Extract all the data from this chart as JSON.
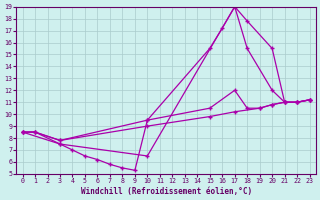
{
  "xlabel": "Windchill (Refroidissement éolien,°C)",
  "bg_color": "#cff0ee",
  "line_color": "#aa00aa",
  "xlim": [
    -0.5,
    23.5
  ],
  "ylim": [
    5,
    19
  ],
  "xticks": [
    0,
    1,
    2,
    3,
    4,
    5,
    6,
    7,
    8,
    9,
    10,
    11,
    12,
    13,
    14,
    15,
    16,
    17,
    18,
    19,
    20,
    21,
    22,
    23
  ],
  "yticks": [
    5,
    6,
    7,
    8,
    9,
    10,
    11,
    12,
    13,
    14,
    15,
    16,
    17,
    18,
    19
  ],
  "lines": [
    {
      "x": [
        0,
        1,
        3,
        10,
        15,
        16,
        17,
        18,
        20,
        21,
        22,
        23
      ],
      "y": [
        8.5,
        8.5,
        7.8,
        9.5,
        15.5,
        17.2,
        19.0,
        17.8,
        15.5,
        11.0,
        11.0,
        11.2
      ]
    },
    {
      "x": [
        0,
        3,
        10,
        17,
        18,
        20,
        21,
        22,
        23
      ],
      "y": [
        8.5,
        7.5,
        6.5,
        19.0,
        15.5,
        12.0,
        11.0,
        11.0,
        11.2
      ]
    },
    {
      "x": [
        0,
        1,
        3,
        4,
        5,
        6,
        7,
        8,
        9,
        10,
        15,
        17,
        18,
        19,
        20,
        21,
        22,
        23
      ],
      "y": [
        8.5,
        8.5,
        7.5,
        7.0,
        6.5,
        6.2,
        5.8,
        5.5,
        5.3,
        9.5,
        10.5,
        12.0,
        10.5,
        10.5,
        10.8,
        11.0,
        11.0,
        11.2
      ]
    },
    {
      "x": [
        0,
        1,
        3,
        10,
        15,
        17,
        19,
        20,
        21,
        22,
        23
      ],
      "y": [
        8.5,
        8.5,
        7.8,
        9.0,
        9.8,
        10.2,
        10.5,
        10.8,
        11.0,
        11.0,
        11.2
      ]
    }
  ]
}
